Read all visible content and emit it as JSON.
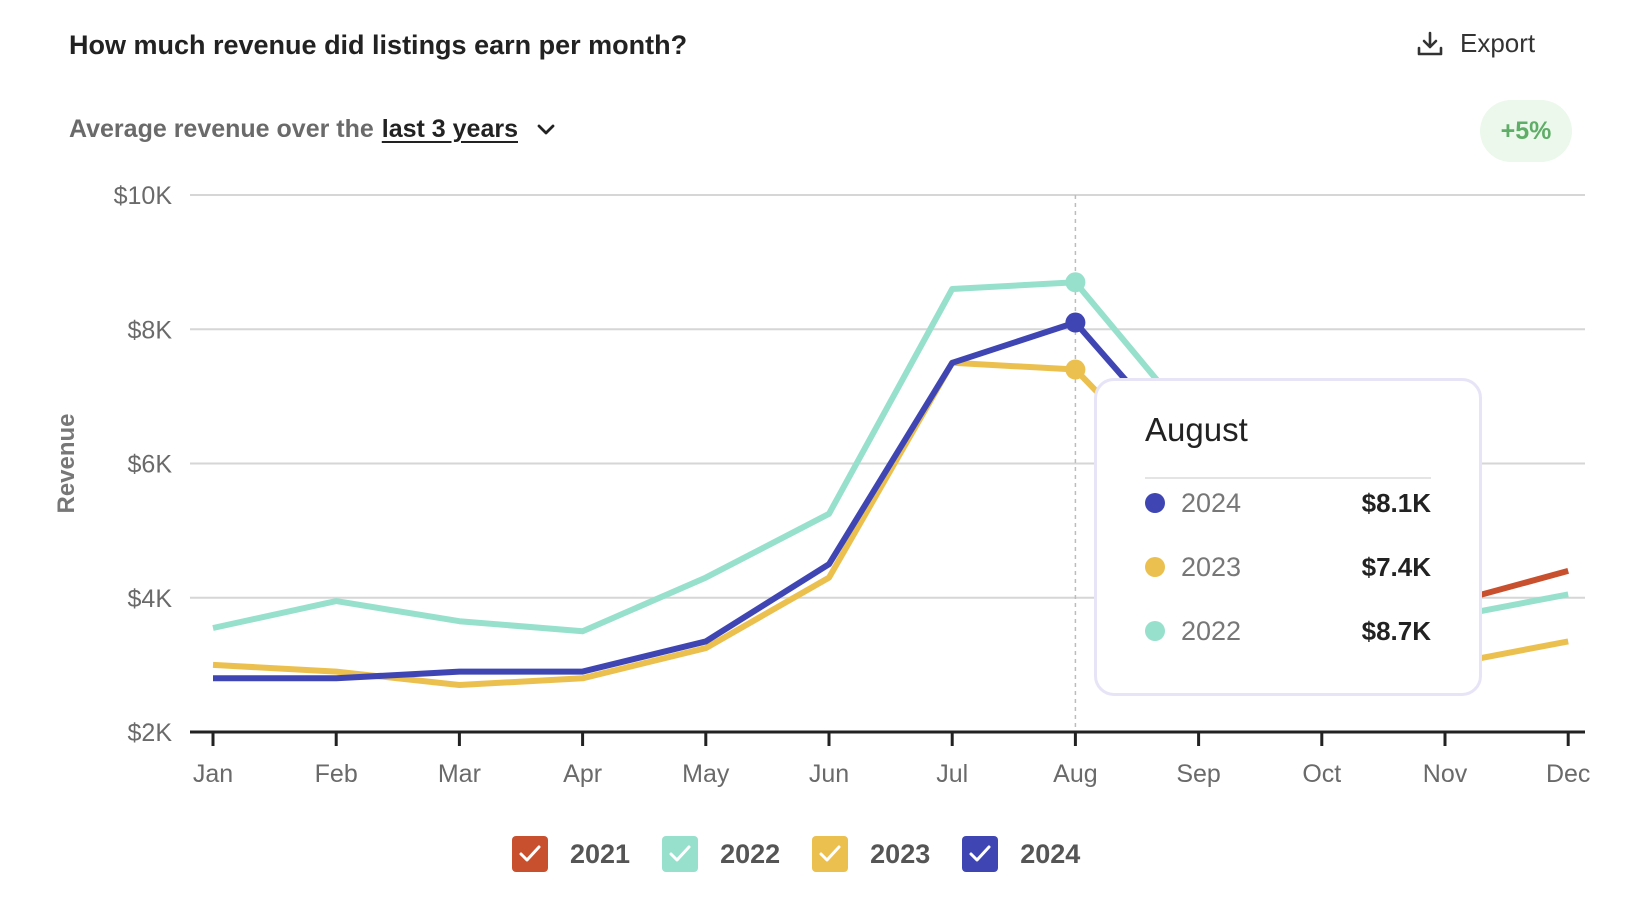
{
  "header": {
    "title": "How much revenue did listings earn per month?",
    "export_label": "Export",
    "export_icon": "download-icon"
  },
  "subtitle": {
    "prefix": "Average revenue over the",
    "period": "last 3 years",
    "dropdown_icon": "chevron-down-icon"
  },
  "badge": {
    "text": "+5%",
    "color": "#5fae67"
  },
  "tooltip": {
    "title": "August",
    "rows": [
      {
        "year": "2024",
        "value": "$8.1K",
        "color": "#3f46b4"
      },
      {
        "year": "2023",
        "value": "$7.4K",
        "color": "#ebc04f"
      },
      {
        "year": "2022",
        "value": "$8.7K",
        "color": "#97e0cc"
      }
    ]
  },
  "legend": [
    {
      "label": "2021",
      "color": "#c9502e",
      "checked": true
    },
    {
      "label": "2022",
      "color": "#97e0cc",
      "checked": true
    },
    {
      "label": "2023",
      "color": "#ebc04f",
      "checked": true
    },
    {
      "label": "2024",
      "color": "#3f46b4",
      "checked": true
    }
  ],
  "chart_data": {
    "type": "line",
    "x": [
      "Jan",
      "Feb",
      "Mar",
      "Apr",
      "May",
      "Jun",
      "Jul",
      "Aug",
      "Sep",
      "Oct",
      "Nov",
      "Dec"
    ],
    "ylabel": "Revenue",
    "ylim": [
      2000,
      10000
    ],
    "yticks": [
      2000,
      4000,
      6000,
      8000,
      10000
    ],
    "ytick_labels": [
      "$2K",
      "$4K",
      "$6K",
      "$8K",
      "$10K"
    ],
    "highlight_x": "Aug",
    "grid": true,
    "series": [
      {
        "name": "2021",
        "color": "#c9502e",
        "values": [
          null,
          null,
          null,
          null,
          null,
          null,
          null,
          null,
          null,
          null,
          3900,
          4400
        ]
      },
      {
        "name": "2022",
        "color": "#97e0cc",
        "values": [
          3550,
          3950,
          3650,
          3500,
          4300,
          5250,
          8600,
          8700,
          6500,
          4500,
          3700,
          4050
        ]
      },
      {
        "name": "2023",
        "color": "#ebc04f",
        "values": [
          3000,
          2900,
          2700,
          2800,
          3250,
          4300,
          7500,
          7400,
          5500,
          4000,
          3000,
          3350
        ]
      },
      {
        "name": "2024",
        "color": "#3f46b4",
        "values": [
          2800,
          2800,
          2900,
          2900,
          3350,
          4500,
          7500,
          8100,
          6000,
          4300,
          3600,
          null
        ]
      }
    ]
  }
}
